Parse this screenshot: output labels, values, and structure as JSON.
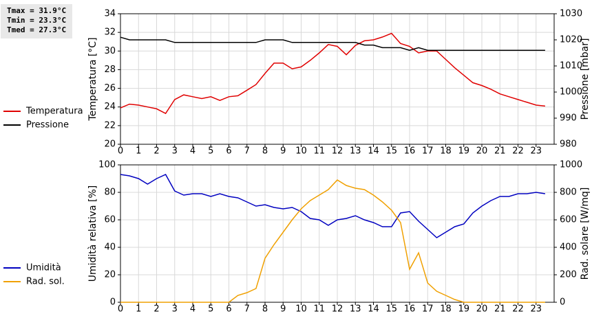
{
  "stats": [
    "Tmax = 31.9°C",
    "Tmin = 23.3°C",
    "Tmed = 27.3°C"
  ],
  "chart_data": [
    {
      "type": "line",
      "y_label": "Temperatura [°C]",
      "y2_label": "Pressione [mbar]",
      "x": [
        0,
        0.5,
        1,
        1.5,
        2,
        2.5,
        3,
        3.5,
        4,
        4.5,
        5,
        5.5,
        6,
        6.5,
        7,
        7.5,
        8,
        8.5,
        9,
        9.5,
        10,
        10.5,
        11,
        11.5,
        12,
        12.5,
        13,
        13.5,
        14,
        14.5,
        15,
        15.5,
        16,
        16.5,
        17,
        17.5,
        18,
        18.5,
        19,
        19.5,
        20,
        20.5,
        21,
        21.5,
        22,
        22.5,
        23,
        23.5
      ],
      "xlim": [
        0,
        24
      ],
      "xticks": [
        0,
        1,
        2,
        3,
        4,
        5,
        6,
        7,
        8,
        9,
        10,
        11,
        12,
        13,
        14,
        15,
        16,
        17,
        18,
        19,
        20,
        21,
        22,
        23
      ],
      "ylim": [
        20,
        34
      ],
      "yticks": [
        20,
        22,
        24,
        26,
        28,
        30,
        32,
        34
      ],
      "y2lim": [
        980,
        1030
      ],
      "y2ticks": [
        980,
        990,
        1000,
        1010,
        1020,
        1030
      ],
      "grid": true,
      "series": [
        {
          "name": "Temperatura",
          "color": "#e00000",
          "axis": "y",
          "values": [
            23.9,
            24.3,
            24.2,
            24.0,
            23.8,
            23.3,
            24.8,
            25.3,
            25.1,
            24.9,
            25.1,
            24.7,
            25.1,
            25.2,
            25.8,
            26.4,
            27.6,
            28.7,
            28.7,
            28.1,
            28.3,
            29.0,
            29.8,
            30.7,
            30.5,
            29.6,
            30.6,
            31.1,
            31.2,
            31.5,
            31.9,
            30.8,
            30.5,
            29.8,
            30.0,
            30.0,
            29.1,
            28.2,
            27.4,
            26.6,
            26.3,
            25.9,
            25.4,
            25.1,
            24.8,
            24.5,
            24.2,
            24.1
          ]
        },
        {
          "name": "Pressione",
          "color": "#000000",
          "axis": "y2",
          "values": [
            1021,
            1020,
            1020,
            1020,
            1020,
            1020,
            1019,
            1019,
            1019,
            1019,
            1019,
            1019,
            1019,
            1019,
            1019,
            1019,
            1020,
            1020,
            1020,
            1019,
            1019,
            1019,
            1019,
            1019,
            1019,
            1019,
            1019,
            1018,
            1018,
            1017,
            1017,
            1017,
            1016,
            1017,
            1016,
            1016,
            1016,
            1016,
            1016,
            1016,
            1016,
            1016,
            1016,
            1016,
            1016,
            1016,
            1016,
            1016
          ]
        }
      ]
    },
    {
      "type": "line",
      "y_label": "Umidità relativa [%]",
      "y2_label": "Rad. solare [W/mq]",
      "x": [
        0,
        0.5,
        1,
        1.5,
        2,
        2.5,
        3,
        3.5,
        4,
        4.5,
        5,
        5.5,
        6,
        6.5,
        7,
        7.5,
        8,
        8.5,
        9,
        9.5,
        10,
        10.5,
        11,
        11.5,
        12,
        12.5,
        13,
        13.5,
        14,
        14.5,
        15,
        15.5,
        16,
        16.5,
        17,
        17.5,
        18,
        18.5,
        19,
        19.5,
        20,
        20.5,
        21,
        21.5,
        22,
        22.5,
        23,
        23.5
      ],
      "xlim": [
        0,
        24
      ],
      "xticks": [
        0,
        1,
        2,
        3,
        4,
        5,
        6,
        7,
        8,
        9,
        10,
        11,
        12,
        13,
        14,
        15,
        16,
        17,
        18,
        19,
        20,
        21,
        22,
        23
      ],
      "ylim": [
        0,
        100
      ],
      "yticks": [
        0,
        20,
        40,
        60,
        80,
        100
      ],
      "y2lim": [
        0,
        1000
      ],
      "y2ticks": [
        0,
        200,
        400,
        600,
        800,
        1000
      ],
      "grid": true,
      "series": [
        {
          "name": "Umidità",
          "color": "#0000c0",
          "axis": "y",
          "values": [
            93,
            92,
            90,
            86,
            90,
            93,
            81,
            78,
            79,
            79,
            77,
            79,
            77,
            76,
            73,
            70,
            71,
            69,
            68,
            69,
            66,
            61,
            60,
            56,
            60,
            61,
            63,
            60,
            58,
            55,
            55,
            65,
            66,
            59,
            53,
            47,
            51,
            55,
            57,
            65,
            70,
            74,
            77,
            77,
            79,
            79,
            80,
            79
          ]
        },
        {
          "name": "Rad. sol.",
          "color": "#f0a000",
          "axis": "y2",
          "values": [
            0,
            0,
            0,
            0,
            0,
            0,
            0,
            0,
            0,
            0,
            0,
            0,
            0,
            50,
            70,
            100,
            320,
            420,
            510,
            600,
            680,
            740,
            780,
            820,
            890,
            850,
            830,
            820,
            780,
            730,
            670,
            580,
            240,
            360,
            140,
            80,
            50,
            20,
            0,
            0,
            0,
            0,
            0,
            0,
            0,
            0,
            0,
            0
          ]
        }
      ]
    }
  ]
}
